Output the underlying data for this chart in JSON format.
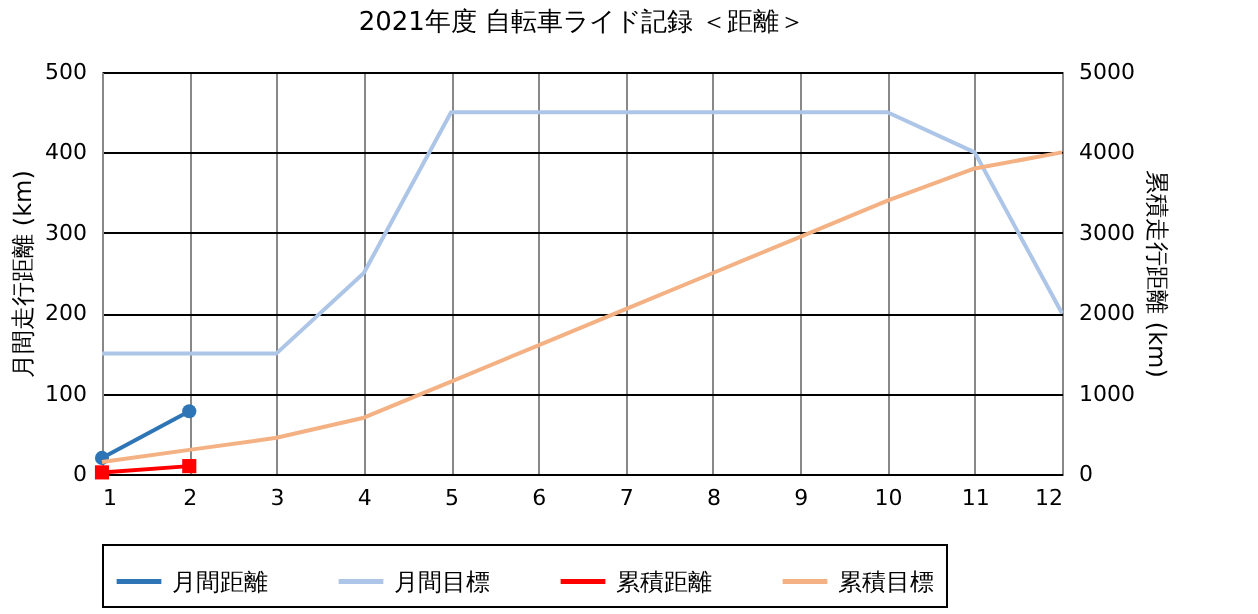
{
  "chart_data": {
    "type": "line",
    "title": "2021年度  自転車ライド記録 ＜距離＞",
    "ylabel": "月間走行距離 (km)",
    "y2label": "累積走行距離 (km)",
    "x": [
      1,
      2,
      3,
      4,
      5,
      6,
      7,
      8,
      9,
      10,
      11,
      12
    ],
    "series": [
      {
        "name": "月間距離",
        "color": "#2e75b6",
        "marker": "circle",
        "values": [
          20,
          78,
          null,
          null,
          null,
          null,
          null,
          null,
          null,
          null,
          null,
          null
        ]
      },
      {
        "name": "月間目標",
        "color": "#adc5e7",
        "marker": "none",
        "values": [
          150,
          150,
          150,
          250,
          450,
          450,
          450,
          450,
          450,
          450,
          400,
          200
        ]
      },
      {
        "name": "累積距離",
        "color": "#ff0000",
        "marker": "square",
        "axis": "y2",
        "values": [
          20,
          98,
          null,
          null,
          null,
          null,
          null,
          null,
          null,
          null,
          null,
          null
        ]
      },
      {
        "name": "累積目標",
        "color": "#f4b183",
        "marker": "none",
        "axis": "y2",
        "values": [
          150,
          300,
          450,
          700,
          1150,
          1600,
          2050,
          2500,
          2950,
          3400,
          3800,
          4000
        ]
      }
    ],
    "xlim": [
      1,
      12
    ],
    "xticks": [
      1,
      2,
      3,
      4,
      5,
      6,
      7,
      8,
      9,
      10,
      11,
      12
    ],
    "ylim": [
      0,
      500
    ],
    "yticks": [
      0,
      100,
      200,
      300,
      400,
      500
    ],
    "y2lim": [
      0,
      5000
    ],
    "y2ticks": [
      0,
      1000,
      2000,
      3000,
      4000,
      5000
    ],
    "grid": true,
    "legend": "bottom"
  }
}
